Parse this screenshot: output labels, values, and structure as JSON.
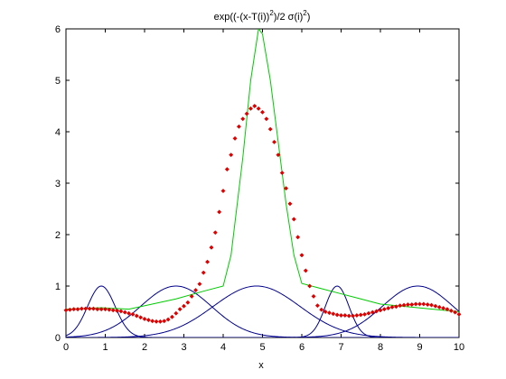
{
  "chart_data": {
    "type": "line",
    "title_parts": [
      "exp((-(x-T(i))",
      "2",
      ")/2 σ(i)",
      "2",
      ")"
    ],
    "xlabel": "x",
    "ylabel": "",
    "xlim": [
      0,
      10
    ],
    "ylim": [
      0,
      6
    ],
    "xticks": [
      "0",
      "1",
      "2",
      "3",
      "4",
      "5",
      "6",
      "7",
      "8",
      "9",
      "10"
    ],
    "yticks": [
      "0",
      "1",
      "2",
      "3",
      "4",
      "5",
      "6"
    ],
    "grid": false,
    "colors": {
      "gaussians": "#00008b",
      "envelope": "#00cc00",
      "fit": "#dd0000"
    },
    "series": [
      {
        "style": "line",
        "color": "#00008b",
        "center": 0.9,
        "sigma": 0.35,
        "amplitude": 1.0
      },
      {
        "style": "line",
        "color": "#00008b",
        "center": 2.8,
        "sigma": 0.9,
        "amplitude": 1.0
      },
      {
        "style": "line",
        "color": "#00008b",
        "center": 4.85,
        "sigma": 1.1,
        "amplitude": 1.0
      },
      {
        "style": "line",
        "color": "#00008b",
        "center": 6.9,
        "sigma": 0.3,
        "amplitude": 1.0
      },
      {
        "style": "line",
        "color": "#00008b",
        "center": 8.95,
        "sigma": 0.9,
        "amplitude": 1.0
      },
      {
        "style": "line",
        "color": "#00cc00",
        "x": [
          0,
          0.9,
          1.6,
          2.8,
          3.5,
          4.0,
          4.2,
          4.5,
          4.7,
          4.85,
          4.9,
          5.0,
          5.2,
          5.4,
          5.6,
          5.8,
          6.0,
          6.5,
          7.0,
          7.5,
          8.0,
          8.95,
          10
        ],
        "y": [
          0.55,
          0.58,
          0.55,
          0.75,
          0.9,
          1.0,
          1.6,
          3.5,
          5.0,
          5.75,
          6.0,
          5.9,
          5.0,
          3.8,
          2.6,
          1.6,
          1.05,
          0.95,
          0.85,
          0.75,
          0.65,
          0.58,
          0.5
        ]
      },
      {
        "style": "markers",
        "color": "#dd0000",
        "x": [
          0.0,
          0.1,
          0.2,
          0.3,
          0.4,
          0.5,
          0.6,
          0.7,
          0.8,
          0.9,
          1.0,
          1.1,
          1.2,
          1.3,
          1.4,
          1.5,
          1.6,
          1.7,
          1.8,
          1.9,
          2.0,
          2.1,
          2.2,
          2.3,
          2.4,
          2.5,
          2.6,
          2.7,
          2.8,
          2.9,
          3.0,
          3.1,
          3.2,
          3.3,
          3.4,
          3.5,
          3.6,
          3.7,
          3.8,
          3.9,
          4.0,
          4.1,
          4.2,
          4.3,
          4.4,
          4.5,
          4.6,
          4.7,
          4.8,
          4.9,
          5.0,
          5.1,
          5.2,
          5.3,
          5.4,
          5.5,
          5.6,
          5.7,
          5.8,
          5.9,
          6.0,
          6.1,
          6.2,
          6.3,
          6.4,
          6.5,
          6.6,
          6.7,
          6.8,
          6.9,
          7.0,
          7.1,
          7.2,
          7.3,
          7.4,
          7.5,
          7.6,
          7.7,
          7.8,
          7.9,
          8.0,
          8.1,
          8.2,
          8.3,
          8.4,
          8.5,
          8.6,
          8.7,
          8.8,
          8.9,
          9.0,
          9.1,
          9.2,
          9.3,
          9.4,
          9.5,
          9.6,
          9.7,
          9.8,
          9.9,
          10.0
        ],
        "y": [
          0.53,
          0.54,
          0.55,
          0.55,
          0.56,
          0.56,
          0.56,
          0.56,
          0.55,
          0.55,
          0.55,
          0.54,
          0.53,
          0.52,
          0.51,
          0.49,
          0.47,
          0.45,
          0.42,
          0.39,
          0.36,
          0.34,
          0.32,
          0.31,
          0.31,
          0.32,
          0.35,
          0.4,
          0.47,
          0.55,
          0.61,
          0.68,
          0.8,
          0.92,
          1.04,
          1.26,
          1.47,
          1.75,
          2.04,
          2.44,
          2.85,
          3.27,
          3.55,
          3.87,
          4.1,
          4.25,
          4.35,
          4.45,
          4.5,
          4.45,
          4.38,
          4.25,
          4.05,
          3.8,
          3.55,
          3.2,
          2.9,
          2.6,
          2.3,
          1.95,
          1.6,
          1.3,
          1.0,
          0.8,
          0.62,
          0.54,
          0.5,
          0.48,
          0.46,
          0.44,
          0.43,
          0.43,
          0.42,
          0.42,
          0.43,
          0.44,
          0.45,
          0.47,
          0.49,
          0.51,
          0.53,
          0.55,
          0.57,
          0.59,
          0.6,
          0.62,
          0.63,
          0.64,
          0.64,
          0.65,
          0.65,
          0.65,
          0.64,
          0.63,
          0.61,
          0.59,
          0.57,
          0.55,
          0.52,
          0.49,
          0.45
        ]
      }
    ]
  }
}
